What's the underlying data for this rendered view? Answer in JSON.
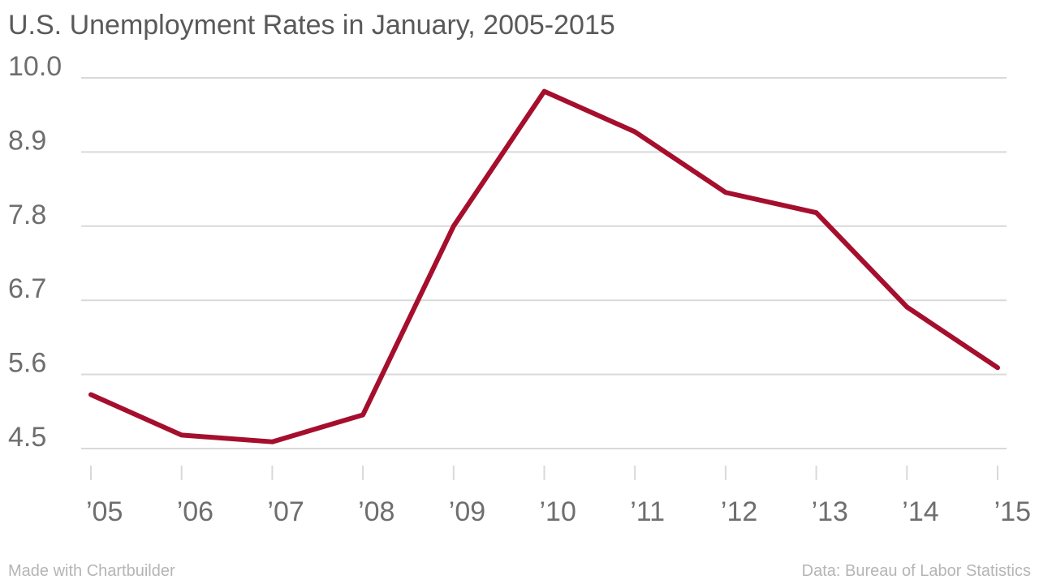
{
  "title": "U.S. Unemployment Rates in January, 2005-2015",
  "footer": {
    "credit": "Made with Chartbuilder",
    "source": "Data: Bureau of Labor Statistics"
  },
  "colors": {
    "line": "#a50f2d",
    "grid": "#d9d9d9",
    "tick_text": "#6e6e6e",
    "title_text": "#595959",
    "footer_text": "#b5b5b5"
  },
  "chart_data": {
    "type": "line",
    "title": "U.S. Unemployment Rates in January, 2005-2015",
    "xlabel": "",
    "ylabel": "",
    "categories": [
      "’05",
      "’06",
      "’07",
      "’08",
      "’09",
      "’10",
      "’11",
      "’12",
      "’13",
      "’14",
      "’15"
    ],
    "series": [
      {
        "values": [
          5.3,
          4.7,
          4.6,
          5.0,
          7.8,
          9.8,
          9.2,
          8.3,
          8.0,
          6.6,
          5.7
        ]
      }
    ],
    "yticks": [
      "4.5",
      "5.6",
      "6.7",
      "7.8",
      "8.9",
      "10.0"
    ],
    "ylim": [
      4.5,
      10.0
    ],
    "grid": true,
    "legend": "none"
  }
}
